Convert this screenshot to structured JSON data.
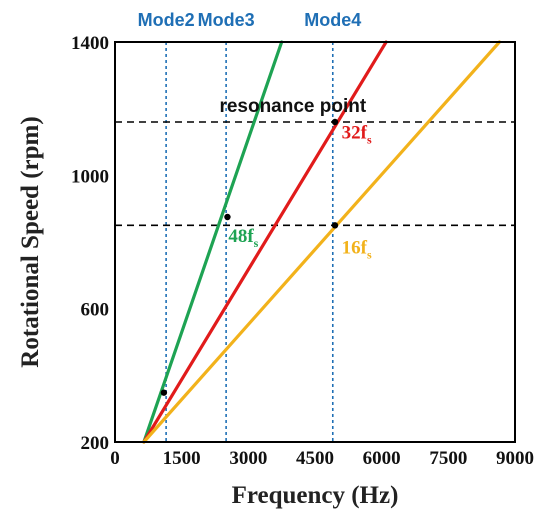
{
  "chart_data": {
    "type": "line",
    "xlabel": "Frequency (Hz)",
    "ylabel": "Rotational Speed (rpm)",
    "xlim": [
      0,
      9000
    ],
    "ylim": [
      200,
      1400
    ],
    "x_ticks": [
      {
        "value": 0,
        "label": "0"
      },
      {
        "value": 1500,
        "label": "1500"
      },
      {
        "value": 3000,
        "label": "3000"
      },
      {
        "value": 4500,
        "label": "4500"
      },
      {
        "value": 6000,
        "label": "6000"
      },
      {
        "value": 7500,
        "label": "7500"
      },
      {
        "value": 9000,
        "label": "9000"
      }
    ],
    "y_ticks": [
      {
        "value": 200,
        "label": "200"
      },
      {
        "value": 600,
        "label": "600"
      },
      {
        "value": 1000,
        "label": "1000"
      },
      {
        "value": 1400,
        "label": "1400"
      }
    ],
    "grid": false,
    "series": [
      {
        "id": "s48",
        "label_main": "48f",
        "label_sub": "s",
        "color": "#1ea353",
        "points": [
          [
            650,
            200
          ],
          [
            3750,
            1400
          ]
        ]
      },
      {
        "id": "s32",
        "label_main": "32f",
        "label_sub": "s",
        "color": "#e11b1b",
        "points": [
          [
            650,
            200
          ],
          [
            6100,
            1400
          ]
        ]
      },
      {
        "id": "s16",
        "label_main": "16f",
        "label_sub": "s",
        "color": "#f2b21b",
        "points": [
          [
            650,
            200
          ],
          [
            8650,
            1400
          ]
        ]
      }
    ],
    "series_labels": [
      {
        "series": "s48",
        "x": 2550,
        "y": 800
      },
      {
        "series": "s32",
        "x": 5100,
        "y": 1110
      },
      {
        "series": "s16",
        "x": 5100,
        "y": 765
      }
    ],
    "mode_lines": [
      {
        "label": "Mode2",
        "x": 1150,
        "color": "#1f6fb5"
      },
      {
        "label": "Mode3",
        "x": 2500,
        "color": "#1f6fb5"
      },
      {
        "label": "Mode4",
        "x": 4900,
        "color": "#1f6fb5"
      }
    ],
    "reference_lines": [
      {
        "y": 1160,
        "color": "#000000"
      },
      {
        "y": 850,
        "color": "#000000"
      }
    ],
    "resonance_points": [
      {
        "x": 1100,
        "y": 348
      },
      {
        "x": 2530,
        "y": 875
      },
      {
        "x": 4950,
        "y": 1160
      },
      {
        "x": 4950,
        "y": 850
      }
    ],
    "annotation": {
      "text": "resonance point",
      "x": 2350,
      "y": 1190
    }
  }
}
